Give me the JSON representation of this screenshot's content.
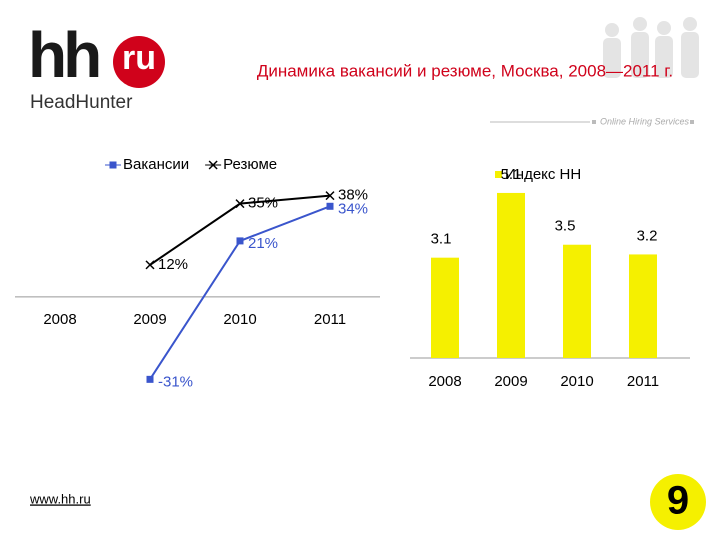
{
  "header": {
    "logo_main": "hh",
    "logo_ru": "ru",
    "logo_sub": "HeadHunter",
    "title": "Динамика вакансий и резюме, Москва, 2008—2011 г.",
    "tagline": "Online Hiring Services"
  },
  "chart_data": [
    {
      "type": "line",
      "categories": [
        "2008",
        "2009",
        "2010",
        "2011"
      ],
      "ylim": [
        -35,
        45
      ],
      "series": [
        {
          "name": "Вакансии",
          "color": "#3a55cc",
          "marker": "square",
          "values": [
            null,
            -31,
            21,
            34
          ],
          "value_labels": [
            null,
            "-31%",
            "21%",
            "34%"
          ]
        },
        {
          "name": "Резюме",
          "color": "#000000",
          "marker": "x",
          "values": [
            null,
            12,
            35,
            38
          ],
          "value_labels": [
            null,
            "12%",
            "35%",
            "38%"
          ]
        }
      ]
    },
    {
      "type": "bar",
      "categories": [
        "2008",
        "2009",
        "2010",
        "2011"
      ],
      "ylim": [
        0,
        5.5
      ],
      "series": [
        {
          "name": "Индекс HH",
          "color": "#f5f000",
          "values": [
            3.1,
            5.1,
            3.5,
            3.2
          ]
        }
      ]
    }
  ],
  "footer": {
    "url": "www.hh.ru",
    "page": "9"
  }
}
